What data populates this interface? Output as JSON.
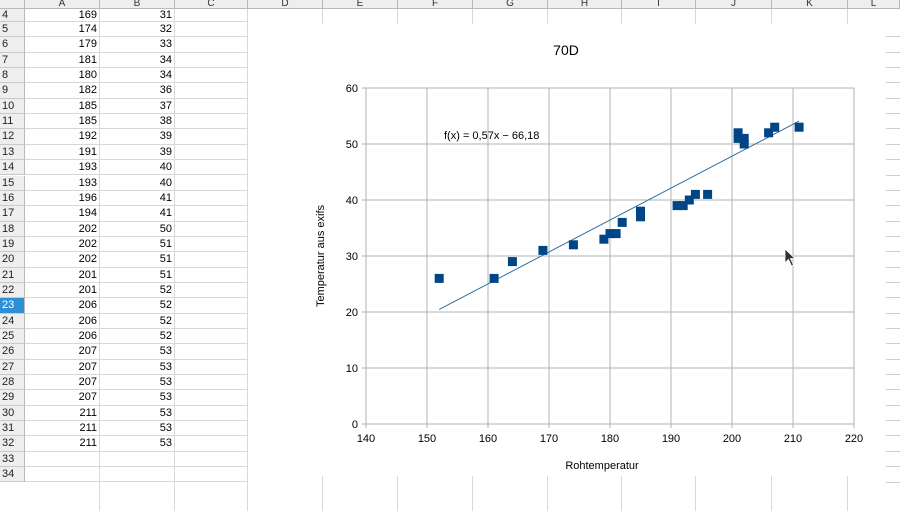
{
  "columns": [
    "A",
    "B",
    "C",
    "D",
    "E",
    "F",
    "G",
    "H",
    "I",
    "J",
    "K",
    "L"
  ],
  "rows": [
    {
      "n": "4",
      "a": "169",
      "b": "31"
    },
    {
      "n": "5",
      "a": "174",
      "b": "32"
    },
    {
      "n": "6",
      "a": "179",
      "b": "33"
    },
    {
      "n": "7",
      "a": "181",
      "b": "34"
    },
    {
      "n": "8",
      "a": "180",
      "b": "34"
    },
    {
      "n": "9",
      "a": "182",
      "b": "36"
    },
    {
      "n": "10",
      "a": "185",
      "b": "37"
    },
    {
      "n": "11",
      "a": "185",
      "b": "38"
    },
    {
      "n": "12",
      "a": "192",
      "b": "39"
    },
    {
      "n": "13",
      "a": "191",
      "b": "39"
    },
    {
      "n": "14",
      "a": "193",
      "b": "40"
    },
    {
      "n": "15",
      "a": "193",
      "b": "40"
    },
    {
      "n": "16",
      "a": "196",
      "b": "41"
    },
    {
      "n": "17",
      "a": "194",
      "b": "41"
    },
    {
      "n": "18",
      "a": "202",
      "b": "50"
    },
    {
      "n": "19",
      "a": "202",
      "b": "51"
    },
    {
      "n": "20",
      "a": "202",
      "b": "51"
    },
    {
      "n": "21",
      "a": "201",
      "b": "51"
    },
    {
      "n": "22",
      "a": "201",
      "b": "52"
    },
    {
      "n": "23",
      "a": "206",
      "b": "52",
      "selected": true
    },
    {
      "n": "24",
      "a": "206",
      "b": "52"
    },
    {
      "n": "25",
      "a": "206",
      "b": "52"
    },
    {
      "n": "26",
      "a": "207",
      "b": "53"
    },
    {
      "n": "27",
      "a": "207",
      "b": "53"
    },
    {
      "n": "28",
      "a": "207",
      "b": "53"
    },
    {
      "n": "29",
      "a": "207",
      "b": "53"
    },
    {
      "n": "30",
      "a": "211",
      "b": "53"
    },
    {
      "n": "31",
      "a": "211",
      "b": "53"
    },
    {
      "n": "32",
      "a": "211",
      "b": "53"
    },
    {
      "n": "33",
      "a": "",
      "b": ""
    },
    {
      "n": "34",
      "a": "",
      "b": ""
    }
  ],
  "colors": {
    "marker": "#004586",
    "trend": "#2f6f9f",
    "selected_row": "#2f8fd5"
  },
  "chart_data": {
    "type": "scatter",
    "title": "70D",
    "xlabel": "Rohtemperatur",
    "ylabel": "Temperatur aus exifs",
    "xlim": [
      140,
      220
    ],
    "ylim": [
      0,
      60
    ],
    "xticks": [
      140,
      150,
      160,
      170,
      180,
      190,
      200,
      210,
      220
    ],
    "yticks": [
      0,
      10,
      20,
      30,
      40,
      50,
      60
    ],
    "grid": true,
    "trendline": {
      "label": "f(x) = 0,57x − 66,18",
      "slope": 0.57,
      "intercept": -66.18,
      "x_range": [
        152,
        211
      ]
    },
    "points": [
      [
        152,
        26
      ],
      [
        161,
        26
      ],
      [
        164,
        29
      ],
      [
        169,
        31
      ],
      [
        174,
        32
      ],
      [
        179,
        33
      ],
      [
        180,
        34
      ],
      [
        181,
        34
      ],
      [
        182,
        36
      ],
      [
        185,
        37
      ],
      [
        185,
        38
      ],
      [
        191,
        39
      ],
      [
        192,
        39
      ],
      [
        193,
        40
      ],
      [
        194,
        41
      ],
      [
        196,
        41
      ],
      [
        201,
        51
      ],
      [
        201,
        52
      ],
      [
        202,
        50
      ],
      [
        202,
        51
      ],
      [
        206,
        52
      ],
      [
        207,
        53
      ],
      [
        211,
        53
      ]
    ]
  }
}
